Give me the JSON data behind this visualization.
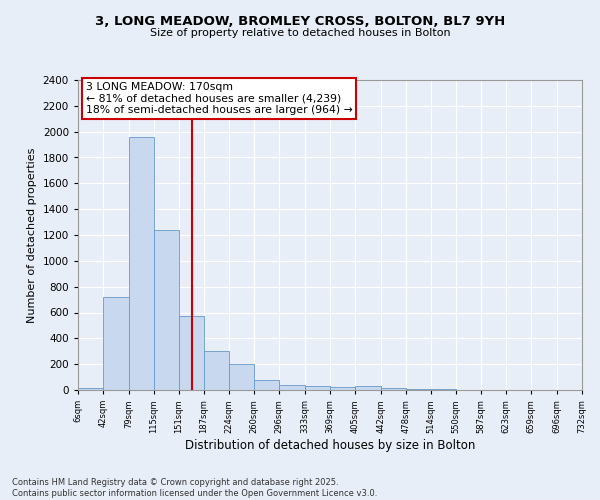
{
  "title1": "3, LONG MEADOW, BROMLEY CROSS, BOLTON, BL7 9YH",
  "title2": "Size of property relative to detached houses in Bolton",
  "xlabel": "Distribution of detached houses by size in Bolton",
  "ylabel": "Number of detached properties",
  "bins": [
    6,
    42,
    79,
    115,
    151,
    187,
    224,
    260,
    296,
    333,
    369,
    405,
    442,
    478,
    514,
    550,
    587,
    623,
    659,
    696,
    732
  ],
  "counts": [
    15,
    720,
    1960,
    1235,
    575,
    305,
    200,
    75,
    40,
    30,
    25,
    30,
    15,
    10,
    5,
    3,
    2,
    1,
    1,
    1
  ],
  "bar_color": "#c8d8ee",
  "bar_edge_color": "#6699cc",
  "vline_x": 170,
  "vline_color": "#cc0000",
  "annotation_title": "3 LONG MEADOW: 170sqm",
  "annotation_line1": "← 81% of detached houses are smaller (4,239)",
  "annotation_line2": "18% of semi-detached houses are larger (964) →",
  "annotation_box_color": "#ffffff",
  "annotation_box_edge": "#cc0000",
  "ylim": [
    0,
    2400
  ],
  "yticks": [
    0,
    200,
    400,
    600,
    800,
    1000,
    1200,
    1400,
    1600,
    1800,
    2000,
    2200,
    2400
  ],
  "background_color": "#e8eef8",
  "plot_bg_color": "#e8eef8",
  "grid_color": "#ffffff",
  "footer1": "Contains HM Land Registry data © Crown copyright and database right 2025.",
  "footer2": "Contains public sector information licensed under the Open Government Licence v3.0."
}
